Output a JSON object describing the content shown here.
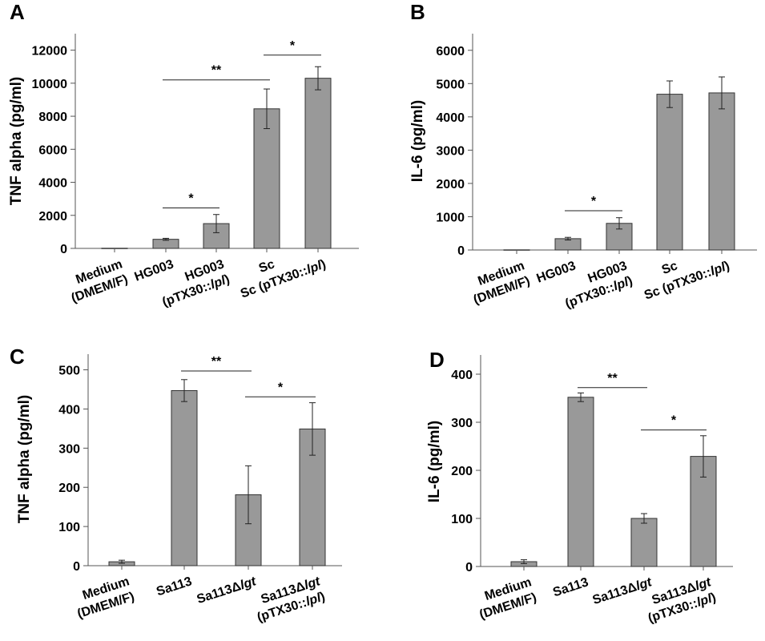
{
  "chart_data": [
    {
      "panel": "A",
      "type": "bar",
      "ylabel": "TNF alpha (pg/ml)",
      "ylim": [
        0,
        13000
      ],
      "yticks": [
        0,
        2000,
        4000,
        6000,
        8000,
        10000,
        12000
      ],
      "categories": [
        {
          "lines": [
            {
              "text": "Medium"
            },
            {
              "text": "(DMEM/F)"
            }
          ]
        },
        {
          "lines": [
            {
              "text": "HG003"
            }
          ]
        },
        {
          "lines": [
            {
              "text": "HG003"
            },
            {
              "text": "(pTX30::",
              "italic": "lpl",
              "after": ")"
            }
          ]
        },
        {
          "lines": [
            {
              "text": "Sc"
            }
          ]
        },
        {
          "lines": [
            {
              "text": "Sc (pTX30::",
              "italic": "lpl",
              "after": ")"
            }
          ]
        }
      ],
      "values": [
        10,
        550,
        1500,
        8450,
        10300
      ],
      "errors": [
        0,
        60,
        550,
        1200,
        700
      ],
      "bar_color": "#999999",
      "significance": [
        {
          "from": 1,
          "to": 2,
          "y": 2450,
          "label": "*"
        },
        {
          "from": 1,
          "to": 3,
          "y": 10200,
          "label": "**"
        },
        {
          "from": 3,
          "to": 4,
          "y": 11700,
          "label": "*"
        }
      ],
      "grid": false
    },
    {
      "panel": "B",
      "type": "bar",
      "ylabel": "IL-6 (pg/ml)",
      "ylim": [
        0,
        6500
      ],
      "yticks": [
        0,
        1000,
        2000,
        3000,
        4000,
        5000,
        6000
      ],
      "categories": [
        {
          "lines": [
            {
              "text": "Medium"
            },
            {
              "text": "(DMEM/F)"
            }
          ]
        },
        {
          "lines": [
            {
              "text": "HG003"
            }
          ]
        },
        {
          "lines": [
            {
              "text": "HG003"
            },
            {
              "text": "(pTX30::",
              "italic": "lpl",
              "after": ")"
            }
          ]
        },
        {
          "lines": [
            {
              "text": "Sc"
            }
          ]
        },
        {
          "lines": [
            {
              "text": "Sc (pTX30::",
              "italic": "lpl",
              "after": ")"
            }
          ]
        }
      ],
      "values": [
        5,
        340,
        800,
        4680,
        4720
      ],
      "errors": [
        0,
        40,
        170,
        400,
        480
      ],
      "bar_color": "#999999",
      "significance": [
        {
          "from": 1,
          "to": 2,
          "y": 1180,
          "label": "*"
        }
      ],
      "grid": false
    },
    {
      "panel": "C",
      "type": "bar",
      "ylabel": "TNF alpha (pg/ml)",
      "ylim": [
        0,
        540
      ],
      "yticks": [
        0,
        100,
        200,
        300,
        400,
        500
      ],
      "categories": [
        {
          "lines": [
            {
              "text": "Medium"
            },
            {
              "text": "(DMEM/F)"
            }
          ]
        },
        {
          "lines": [
            {
              "text": "Sa113"
            }
          ]
        },
        {
          "lines": [
            {
              "text": "Sa113Δ",
              "italic": "lgt",
              "after": ""
            }
          ]
        },
        {
          "lines": [
            {
              "text": "Sa113Δ",
              "italic": "lgt",
              "after": ""
            },
            {
              "text": "(pTX30::",
              "italic": "lpl",
              "after": ")"
            }
          ]
        }
      ],
      "values": [
        10,
        447,
        181,
        349
      ],
      "errors": [
        4,
        28,
        74,
        67
      ],
      "bar_color": "#999999",
      "significance": [
        {
          "from": 1,
          "to": 2,
          "y": 497,
          "label": "**"
        },
        {
          "from": 2,
          "to": 3,
          "y": 431,
          "label": "*"
        }
      ],
      "grid": false
    },
    {
      "panel": "D",
      "type": "bar",
      "ylabel": "IL-6 (pg/ml)",
      "ylim": [
        0,
        440
      ],
      "yticks": [
        0,
        100,
        200,
        300,
        400
      ],
      "categories": [
        {
          "lines": [
            {
              "text": "Medium"
            },
            {
              "text": "(DMEM/F)"
            }
          ]
        },
        {
          "lines": [
            {
              "text": "Sa113"
            }
          ]
        },
        {
          "lines": [
            {
              "text": "Sa113Δ",
              "italic": "lgt",
              "after": ""
            }
          ]
        },
        {
          "lines": [
            {
              "text": "Sa113Δ",
              "italic": "lgt",
              "after": ""
            },
            {
              "text": "(pTX30::",
              "italic": "lpl",
              "after": ")"
            }
          ]
        }
      ],
      "values": [
        10,
        352,
        100,
        229
      ],
      "errors": [
        4,
        9,
        10,
        43
      ],
      "bar_color": "#999999",
      "significance": [
        {
          "from": 1,
          "to": 2,
          "y": 372,
          "label": "**"
        },
        {
          "from": 2,
          "to": 3,
          "y": 284,
          "label": "*"
        }
      ],
      "grid": false
    }
  ]
}
